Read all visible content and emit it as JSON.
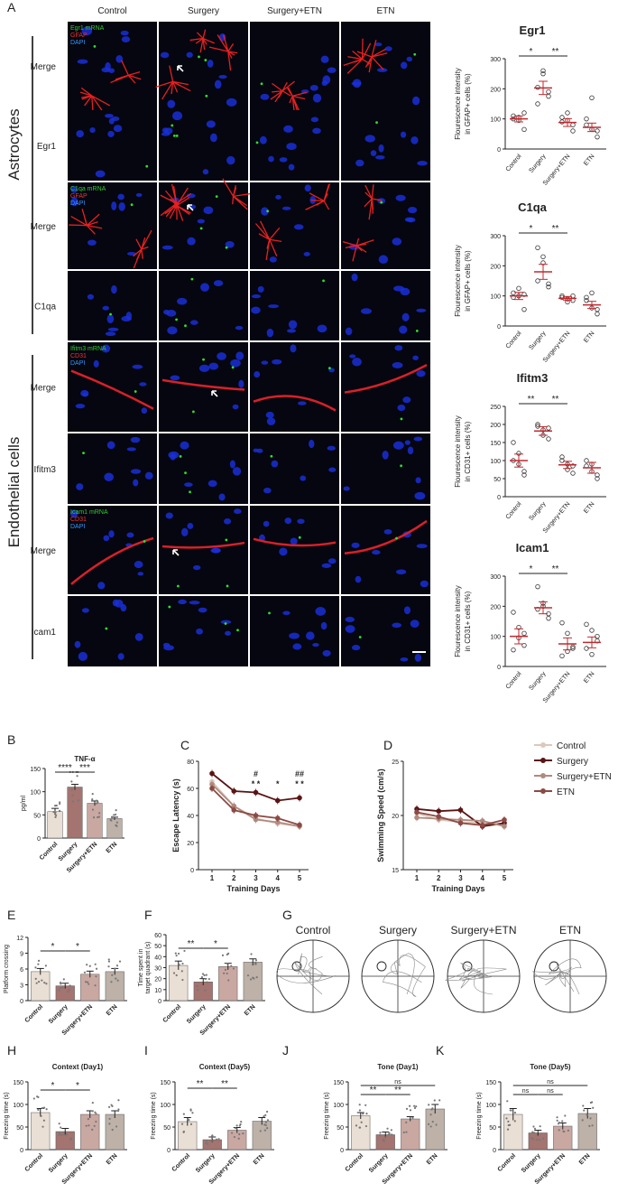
{
  "panel_letters": [
    "A",
    "B",
    "C",
    "D",
    "E",
    "F",
    "G",
    "H",
    "I",
    "J",
    "K"
  ],
  "panel_a": {
    "columns": [
      "Control",
      "Surgery",
      "Surgery+ETN",
      "ETN"
    ],
    "groups": [
      "Astrocytes",
      "Endothelial cells"
    ],
    "rows": [
      {
        "label": "Merge",
        "legend": [
          {
            "text": "Egr1 mRNA",
            "color": "#3c3"
          },
          {
            "text": "GFAP",
            "color": "#e33"
          },
          {
            "text": "DAPI",
            "color": "#39f"
          }
        ]
      },
      {
        "label": "Egr1",
        "legend": []
      },
      {
        "label": "Merge",
        "legend": [
          {
            "text": "C1qa mRNA",
            "color": "#3c3"
          },
          {
            "text": "GFAP",
            "color": "#e33"
          },
          {
            "text": "DAPI",
            "color": "#39f"
          }
        ]
      },
      {
        "label": "C1qa",
        "legend": []
      },
      {
        "label": "Merge",
        "legend": [
          {
            "text": "Ifitm3 mRNA",
            "color": "#3c3"
          },
          {
            "text": "CD31",
            "color": "#e33"
          },
          {
            "text": "DAPI",
            "color": "#39f"
          }
        ]
      },
      {
        "label": "Ifitm3",
        "legend": []
      },
      {
        "label": "Merge",
        "legend": [
          {
            "text": "Icam1 mRNA",
            "color": "#3c3"
          },
          {
            "text": "CD31",
            "color": "#e33"
          },
          {
            "text": "DAPI",
            "color": "#39f"
          }
        ]
      },
      {
        "label": "Icam1",
        "legend": []
      }
    ]
  },
  "chart_data": [
    {
      "type": "scatter",
      "title": "Egr1",
      "ylabel": "Flourescence intensity in GFAP+ cells (%)",
      "categories": [
        "Control",
        "Surgery",
        "Surgery+ETN",
        "ETN"
      ],
      "ylim": [
        0,
        300
      ],
      "yticks": [
        0,
        100,
        200,
        300
      ],
      "means": [
        100,
        203,
        88,
        72
      ],
      "sem": [
        10,
        22,
        13,
        14
      ],
      "points": [
        [
          100,
          105,
          65,
          110,
          95,
          120
        ],
        [
          205,
          250,
          175,
          150,
          260,
          190
        ],
        [
          90,
          120,
          60,
          105,
          95,
          80
        ],
        [
          80,
          65,
          40,
          100,
          170,
          60
        ]
      ],
      "sig": [
        {
          "from": 0,
          "to": 1,
          "label": "*"
        },
        {
          "from": 1,
          "to": 2,
          "label": "**"
        }
      ]
    },
    {
      "type": "scatter",
      "title": "C1qa",
      "ylabel": "Flourescence intensity in GFAP+ cells (%)",
      "categories": [
        "Control",
        "Surgery",
        "Surgery+ETN",
        "ETN"
      ],
      "ylim": [
        0,
        300
      ],
      "yticks": [
        0,
        100,
        200,
        300
      ],
      "means": [
        100,
        180,
        92,
        70
      ],
      "sem": [
        12,
        25,
        6,
        12
      ],
      "points": [
        [
          110,
          100,
          55,
          95,
          125,
          105
        ],
        [
          260,
          230,
          130,
          150,
          210,
          140
        ],
        [
          100,
          90,
          85,
          95,
          80,
          100
        ],
        [
          85,
          60,
          40,
          95,
          110,
          55
        ]
      ],
      "sig": [
        {
          "from": 0,
          "to": 1,
          "label": "*"
        },
        {
          "from": 1,
          "to": 2,
          "label": "**"
        }
      ]
    },
    {
      "type": "scatter",
      "title": "Ifitm3",
      "ylabel": "Flourescence intensity in CD31+ cells (%)",
      "categories": [
        "Control",
        "Surgery",
        "Surgery+ETN",
        "ETN"
      ],
      "ylim": [
        0,
        250
      ],
      "yticks": [
        0,
        50,
        100,
        150,
        200,
        250
      ],
      "means": [
        100,
        182,
        88,
        80
      ],
      "sem": [
        18,
        12,
        10,
        15
      ],
      "points": [
        [
          150,
          120,
          60,
          100,
          90,
          70
        ],
        [
          200,
          185,
          160,
          195,
          170,
          190
        ],
        [
          100,
          90,
          65,
          110,
          75,
          85
        ],
        [
          100,
          70,
          50,
          85,
          90,
          60
        ]
      ],
      "sig": [
        {
          "from": 0,
          "to": 1,
          "label": "**"
        },
        {
          "from": 1,
          "to": 2,
          "label": "**"
        }
      ]
    },
    {
      "type": "scatter",
      "title": "Icam1",
      "ylabel": "Flourescence intensity in CD31+ cells (%)",
      "categories": [
        "Control",
        "Surgery",
        "Surgery+ETN",
        "ETN"
      ],
      "ylim": [
        0,
        300
      ],
      "yticks": [
        0,
        100,
        200,
        300
      ],
      "means": [
        100,
        195,
        75,
        80
      ],
      "sem": [
        25,
        20,
        20,
        18
      ],
      "points": [
        [
          180,
          130,
          70,
          55,
          95,
          110
        ],
        [
          265,
          200,
          160,
          190,
          210,
          175
        ],
        [
          145,
          110,
          65,
          35,
          50,
          60
        ],
        [
          140,
          120,
          100,
          60,
          40,
          85
        ]
      ],
      "sig": [
        {
          "from": 0,
          "to": 1,
          "label": "*"
        },
        {
          "from": 1,
          "to": 2,
          "label": "**"
        }
      ]
    },
    {
      "type": "bar",
      "title": "TNF-α",
      "ylabel": "pg/ml",
      "categories": [
        "Control",
        "Surgery",
        "Surgery+ETN",
        "ETN"
      ],
      "values": [
        57,
        110,
        75,
        42
      ],
      "sem": [
        7,
        6,
        5,
        3
      ],
      "ylim": [
        0,
        150
      ],
      "yticks": [
        0,
        50,
        100,
        150
      ],
      "colors": [
        "#eadfd4",
        "#a37470",
        "#c9a8a2",
        "#bdb1a8"
      ],
      "sig": [
        {
          "from": 0,
          "to": 1,
          "label": "****"
        },
        {
          "from": 1,
          "to": 2,
          "label": "***"
        }
      ]
    },
    {
      "type": "line",
      "xlabel": "Training Days",
      "ylabel": "Escape Latency (s)",
      "x": [
        1,
        2,
        3,
        4,
        5
      ],
      "ylim": [
        0,
        80
      ],
      "yticks": [
        0,
        20,
        40,
        60,
        80
      ],
      "series": [
        {
          "name": "Control",
          "values": [
            65,
            47,
            38,
            34,
            32
          ],
          "color": "#dcc8bd"
        },
        {
          "name": "Surgery",
          "values": [
            71,
            58,
            57,
            51,
            53
          ],
          "color": "#5a1414"
        },
        {
          "name": "Surgery+ETN",
          "values": [
            63,
            47,
            37,
            35,
            32
          ],
          "color": "#b08a7e"
        },
        {
          "name": "ETN",
          "values": [
            60,
            44,
            40,
            38,
            33
          ],
          "color": "#8c4a44"
        }
      ],
      "annotations": [
        {
          "x": 3,
          "text": "#",
          "row": 0
        },
        {
          "x": 3,
          "text": "* *",
          "row": 1
        },
        {
          "x": 4,
          "text": "*",
          "row": 1
        },
        {
          "x": 5,
          "text": "##",
          "row": 0
        },
        {
          "x": 5,
          "text": "* *",
          "row": 1
        }
      ]
    },
    {
      "type": "line",
      "xlabel": "Training Days",
      "ylabel": "Swimming Speed (cm/s)",
      "x": [
        1,
        2,
        3,
        4,
        5
      ],
      "ylim": [
        15,
        25
      ],
      "yticks": [
        15,
        20,
        25
      ],
      "series": [
        {
          "name": "Control",
          "values": [
            20.2,
            19.6,
            19.4,
            19.3,
            19.1
          ],
          "color": "#dcc8bd"
        },
        {
          "name": "Surgery",
          "values": [
            20.6,
            20.4,
            20.5,
            19.0,
            19.3
          ],
          "color": "#5a1414"
        },
        {
          "name": "Surgery+ETN",
          "values": [
            19.8,
            19.7,
            19.6,
            19.5,
            19.0
          ],
          "color": "#b08a7e"
        },
        {
          "name": "ETN",
          "values": [
            20.3,
            19.9,
            19.3,
            19.1,
            19.6
          ],
          "color": "#8c4a44"
        }
      ]
    },
    {
      "type": "bar",
      "ylabel": "Platform crossing",
      "categories": [
        "Control",
        "Surgery",
        "Surgery+ETN",
        "ETN"
      ],
      "values": [
        5.5,
        2.8,
        5.0,
        5.5
      ],
      "sem": [
        0.6,
        0.5,
        0.6,
        0.6
      ],
      "ylim": [
        0,
        12
      ],
      "yticks": [
        0,
        3,
        6,
        9,
        12
      ],
      "colors": [
        "#eadfd4",
        "#a37470",
        "#c9a8a2",
        "#bdb1a8"
      ],
      "sig": [
        {
          "from": 0,
          "to": 1,
          "label": "*"
        },
        {
          "from": 1,
          "to": 2,
          "label": "*"
        }
      ]
    },
    {
      "type": "bar",
      "ylabel": "Time spent in target quadrant (s)",
      "categories": [
        "Control",
        "Surgery",
        "Surgery+ETN",
        "ETN"
      ],
      "values": [
        32,
        17,
        31,
        35
      ],
      "sem": [
        4,
        3,
        3,
        3
      ],
      "ylim": [
        0,
        60
      ],
      "yticks": [
        0,
        10,
        20,
        30,
        40,
        50,
        60
      ],
      "colors": [
        "#eadfd4",
        "#a37470",
        "#c9a8a2",
        "#bdb1a8"
      ],
      "sig": [
        {
          "from": 0,
          "to": 1,
          "label": "**"
        },
        {
          "from": 1,
          "to": 2,
          "label": "*"
        }
      ]
    },
    {
      "type": "bar",
      "title": "Context (Day1)",
      "ylabel": "Freezing time (s)",
      "categories": [
        "Control",
        "Surgery",
        "Surgery+ETN",
        "ETN"
      ],
      "values": [
        82,
        40,
        78,
        78
      ],
      "sem": [
        9,
        7,
        8,
        8
      ],
      "ylim": [
        0,
        150
      ],
      "yticks": [
        0,
        50,
        100,
        150
      ],
      "colors": [
        "#eadfd4",
        "#a37470",
        "#c9a8a2",
        "#bdb1a8"
      ],
      "sig": [
        {
          "from": 0,
          "to": 1,
          "label": "*"
        },
        {
          "from": 1,
          "to": 2,
          "label": "*"
        }
      ]
    },
    {
      "type": "bar",
      "title": "Context (Day5)",
      "ylabel": "Freezing time (s)",
      "categories": [
        "Control",
        "Surgery",
        "Surgery+ETN",
        "ETN"
      ],
      "values": [
        62,
        22,
        43,
        63
      ],
      "sem": [
        9,
        6,
        6,
        8
      ],
      "ylim": [
        0,
        150
      ],
      "yticks": [
        0,
        50,
        100,
        150
      ],
      "colors": [
        "#eadfd4",
        "#a37470",
        "#c9a8a2",
        "#bdb1a8"
      ],
      "sig": [
        {
          "from": 0,
          "to": 1,
          "label": "**"
        },
        {
          "from": 1,
          "to": 2,
          "label": "**"
        }
      ]
    },
    {
      "type": "bar",
      "title": "Tone (Day1)",
      "ylabel": "Freezing time (s)",
      "categories": [
        "Control",
        "Surgery",
        "Surgery+ETN",
        "ETN"
      ],
      "values": [
        75,
        33,
        68,
        90
      ],
      "sem": [
        7,
        6,
        5,
        10
      ],
      "ylim": [
        0,
        150
      ],
      "yticks": [
        0,
        50,
        100,
        150
      ],
      "colors": [
        "#eadfd4",
        "#a37470",
        "#c9a8a2",
        "#bdb1a8"
      ],
      "sig": [
        {
          "from": 0,
          "to": 1,
          "label": "**"
        },
        {
          "from": 1,
          "to": 2,
          "label": "**"
        },
        {
          "from": 0,
          "to": 3,
          "label": "ns"
        }
      ]
    },
    {
      "type": "bar",
      "title": "Tone (Day5)",
      "ylabel": "Freezing time (s)",
      "categories": [
        "Control",
        "Surgery",
        "Surgery+ETN",
        "ETN"
      ],
      "values": [
        78,
        37,
        52,
        80
      ],
      "sem": [
        13,
        6,
        7,
        11
      ],
      "ylim": [
        0,
        150
      ],
      "yticks": [
        0,
        50,
        100,
        150
      ],
      "colors": [
        "#eadfd4",
        "#a37470",
        "#c9a8a2",
        "#bdb1a8"
      ],
      "sig": [
        {
          "from": 0,
          "to": 1,
          "label": "ns"
        },
        {
          "from": 1,
          "to": 2,
          "label": "ns"
        },
        {
          "from": 0,
          "to": 3,
          "label": "ns"
        }
      ]
    }
  ],
  "panel_g": {
    "titles": [
      "Control",
      "Surgery",
      "Surgery+ETN",
      "ETN"
    ]
  }
}
